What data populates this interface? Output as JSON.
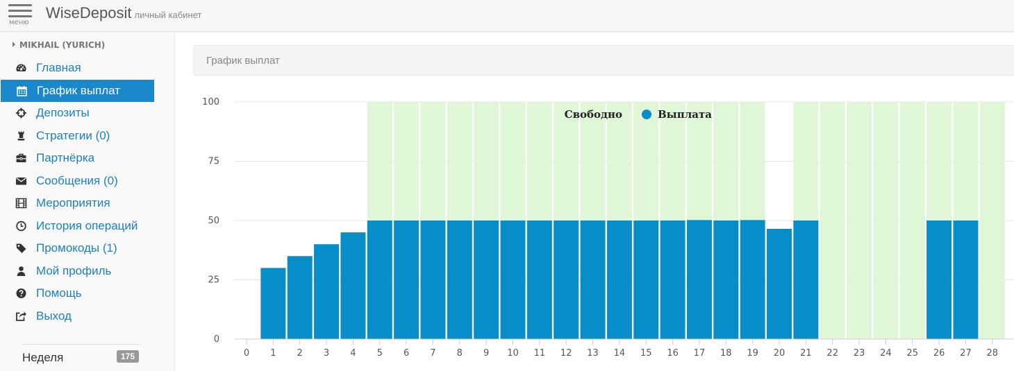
{
  "header": {
    "menu_label": "меню",
    "brand": "WiseDeposit",
    "brand_sub": "личный кабинет"
  },
  "sidebar": {
    "user": "MIKHAIL (YURICH)",
    "items": [
      {
        "label": "Главная",
        "icon": "dashboard-icon"
      },
      {
        "label": "График выплат",
        "icon": "calendar-icon",
        "active": true
      },
      {
        "label": "Депозиты",
        "icon": "crosshairs-icon"
      },
      {
        "label": "Стратегии (0)",
        "icon": "chess-rook-icon"
      },
      {
        "label": "Партнёрка",
        "icon": "briefcase-icon"
      },
      {
        "label": "Сообщения (0)",
        "icon": "envelope-icon"
      },
      {
        "label": "Мероприятия",
        "icon": "film-icon"
      },
      {
        "label": "История операций",
        "icon": "clock-icon"
      },
      {
        "label": "Промокоды (1)",
        "icon": "tag-icon"
      },
      {
        "label": "Мой профиль",
        "icon": "user-icon"
      },
      {
        "label": "Помощь",
        "icon": "question-circle-icon"
      },
      {
        "label": "Выход",
        "icon": "share-square-icon"
      }
    ],
    "week_label": "Неделя",
    "week_count": "175"
  },
  "panel": {
    "title": "График выплат"
  },
  "chart_data": {
    "type": "bar",
    "stacked": true,
    "x": [
      0,
      1,
      2,
      3,
      4,
      5,
      6,
      7,
      8,
      9,
      10,
      11,
      12,
      13,
      14,
      15,
      16,
      17,
      18,
      19,
      20,
      21,
      22,
      23,
      24,
      25,
      26,
      27,
      28
    ],
    "series": [
      {
        "name": "Выплата",
        "color": "#078dc8",
        "values": [
          0,
          30,
          35,
          40,
          45,
          50,
          50,
          50,
          50,
          50,
          50,
          50,
          50,
          50,
          50,
          50,
          50,
          50.2,
          50,
          50.2,
          46.5,
          50,
          0,
          0,
          0,
          0,
          50,
          50,
          0
        ]
      },
      {
        "name": "Свободно",
        "color": "#dff7d6",
        "values": [
          0,
          0,
          0,
          0,
          0,
          50,
          50,
          50,
          50,
          50,
          50,
          50,
          50,
          50,
          50,
          50,
          50,
          49.8,
          50,
          49.8,
          0,
          50,
          100,
          100,
          100,
          100,
          50,
          50,
          100
        ]
      }
    ],
    "yticks": [
      0,
      25,
      50,
      75,
      100
    ],
    "ylim": [
      0,
      100
    ],
    "grid": true,
    "legend": "top-center",
    "legend_marker_color": "#078dc8"
  }
}
